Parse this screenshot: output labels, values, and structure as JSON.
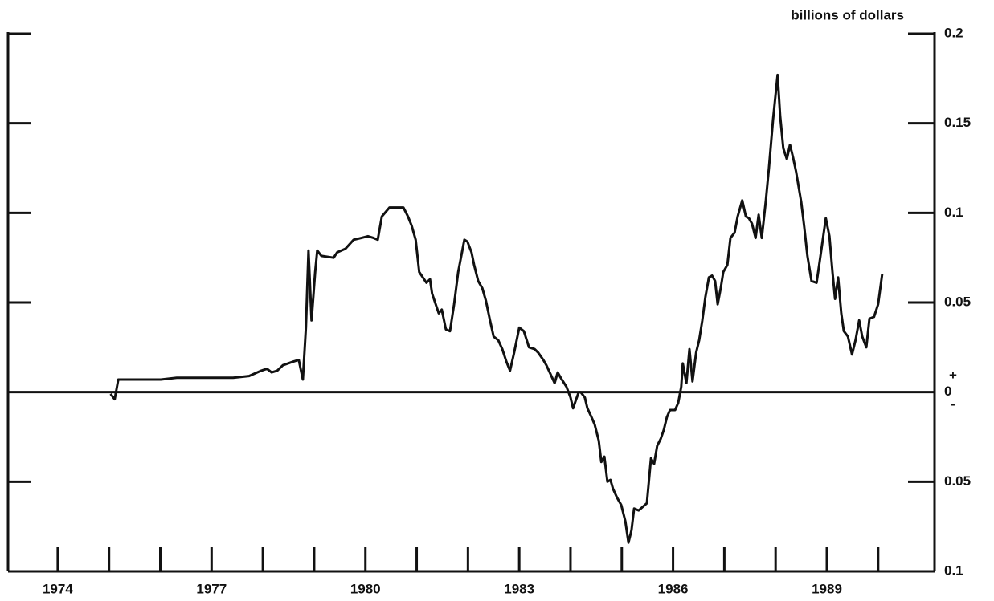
{
  "chart_data": {
    "type": "line",
    "y_axis_label": "billions of dollars",
    "annotations": [
      "+",
      "-"
    ],
    "xlim": [
      1973.03,
      1991.1
    ],
    "xticks": [
      1974,
      1977,
      1980,
      1983,
      1986,
      1989
    ],
    "xminor": [
      1975,
      1976,
      1978,
      1979,
      1981,
      1982,
      1984,
      1985,
      1987,
      1988,
      1990
    ],
    "ylim": [
      -0.1,
      0.2
    ],
    "yticks": [
      {
        "value": -0.1,
        "label": "0.1"
      },
      {
        "value": -0.05,
        "label": "0.05"
      },
      0,
      0.05,
      0.1,
      0.15,
      0.2
    ],
    "zero_line": true,
    "series": [
      {
        "color": "#111111",
        "x": [
          1975.03,
          1975.11,
          1975.18,
          1975.38,
          1976.01,
          1976.32,
          1977.01,
          1977.42,
          1977.73,
          1977.97,
          1978.08,
          1978.17,
          1978.28,
          1978.39,
          1978.59,
          1978.7,
          1978.78,
          1978.84,
          1978.89,
          1978.95,
          1979.02,
          1979.06,
          1979.14,
          1979.38,
          1979.45,
          1979.61,
          1979.77,
          1979.92,
          1980.05,
          1980.16,
          1980.24,
          1980.32,
          1980.47,
          1980.74,
          1980.83,
          1980.9,
          1980.98,
          1981.05,
          1981.12,
          1981.19,
          1981.26,
          1981.3,
          1981.37,
          1981.43,
          1981.49,
          1981.57,
          1981.65,
          1981.73,
          1981.81,
          1981.93,
          1981.99,
          1982.07,
          1982.12,
          1982.2,
          1982.28,
          1982.35,
          1982.43,
          1982.5,
          1982.59,
          1982.67,
          1982.75,
          1982.82,
          1982.9,
          1983.0,
          1983.09,
          1983.19,
          1983.3,
          1983.37,
          1983.47,
          1983.53,
          1983.61,
          1983.69,
          1983.75,
          1983.81,
          1983.92,
          1984.0,
          1984.05,
          1984.11,
          1984.16,
          1984.2,
          1984.28,
          1984.33,
          1984.41,
          1984.47,
          1984.55,
          1984.6,
          1984.66,
          1984.72,
          1984.78,
          1984.83,
          1984.91,
          1984.99,
          1985.07,
          1985.13,
          1985.19,
          1985.24,
          1985.33,
          1985.41,
          1985.49,
          1985.57,
          1985.63,
          1985.69,
          1985.76,
          1985.82,
          1985.88,
          1985.94,
          1986.04,
          1986.1,
          1986.16,
          1986.19,
          1986.26,
          1986.32,
          1986.38,
          1986.45,
          1986.51,
          1986.57,
          1986.63,
          1986.7,
          1986.76,
          1986.82,
          1986.87,
          1986.93,
          1986.98,
          1987.06,
          1987.12,
          1987.2,
          1987.26,
          1987.35,
          1987.42,
          1987.48,
          1987.54,
          1987.61,
          1987.67,
          1987.73,
          1987.81,
          1987.87,
          1987.95,
          1988.04,
          1988.09,
          1988.15,
          1988.22,
          1988.28,
          1988.34,
          1988.4,
          1988.5,
          1988.56,
          1988.62,
          1988.7,
          1988.8,
          1988.86,
          1988.92,
          1988.98,
          1989.05,
          1989.11,
          1989.16,
          1989.22,
          1989.28,
          1989.33,
          1989.41,
          1989.49,
          1989.56,
          1989.63,
          1989.69,
          1989.77,
          1989.83,
          1989.92,
          1990.0,
          1990.08
        ],
        "values": [
          -0.001,
          -0.004,
          0.007,
          0.007,
          0.007,
          0.008,
          0.008,
          0.008,
          0.009,
          0.012,
          0.013,
          0.011,
          0.012,
          0.015,
          0.017,
          0.018,
          0.007,
          0.036,
          0.079,
          0.04,
          0.067,
          0.079,
          0.076,
          0.075,
          0.078,
          0.08,
          0.085,
          0.086,
          0.087,
          0.086,
          0.085,
          0.098,
          0.103,
          0.103,
          0.098,
          0.093,
          0.085,
          0.067,
          0.064,
          0.061,
          0.063,
          0.055,
          0.049,
          0.044,
          0.046,
          0.035,
          0.034,
          0.049,
          0.067,
          0.085,
          0.084,
          0.078,
          0.071,
          0.062,
          0.058,
          0.051,
          0.04,
          0.031,
          0.029,
          0.024,
          0.017,
          0.012,
          0.022,
          0.036,
          0.034,
          0.025,
          0.024,
          0.022,
          0.018,
          0.015,
          0.01,
          0.005,
          0.011,
          0.008,
          0.003,
          -0.003,
          -0.009,
          -0.004,
          0.0,
          0.0,
          -0.003,
          -0.009,
          -0.014,
          -0.018,
          -0.027,
          -0.039,
          -0.036,
          -0.05,
          -0.049,
          -0.054,
          -0.059,
          -0.063,
          -0.072,
          -0.084,
          -0.077,
          -0.065,
          -0.066,
          -0.064,
          -0.062,
          -0.037,
          -0.04,
          -0.03,
          -0.026,
          -0.021,
          -0.014,
          -0.01,
          -0.01,
          -0.006,
          0.003,
          0.016,
          0.005,
          0.024,
          0.006,
          0.022,
          0.029,
          0.04,
          0.053,
          0.064,
          0.065,
          0.062,
          0.049,
          0.058,
          0.067,
          0.071,
          0.086,
          0.089,
          0.098,
          0.107,
          0.098,
          0.097,
          0.094,
          0.086,
          0.099,
          0.086,
          0.107,
          0.125,
          0.152,
          0.177,
          0.154,
          0.136,
          0.13,
          0.138,
          0.131,
          0.123,
          0.106,
          0.092,
          0.076,
          0.062,
          0.061,
          0.073,
          0.085,
          0.097,
          0.087,
          0.067,
          0.052,
          0.064,
          0.044,
          0.034,
          0.031,
          0.021,
          0.029,
          0.04,
          0.031,
          0.025,
          0.041,
          0.042,
          0.049,
          0.066
        ]
      }
    ]
  }
}
